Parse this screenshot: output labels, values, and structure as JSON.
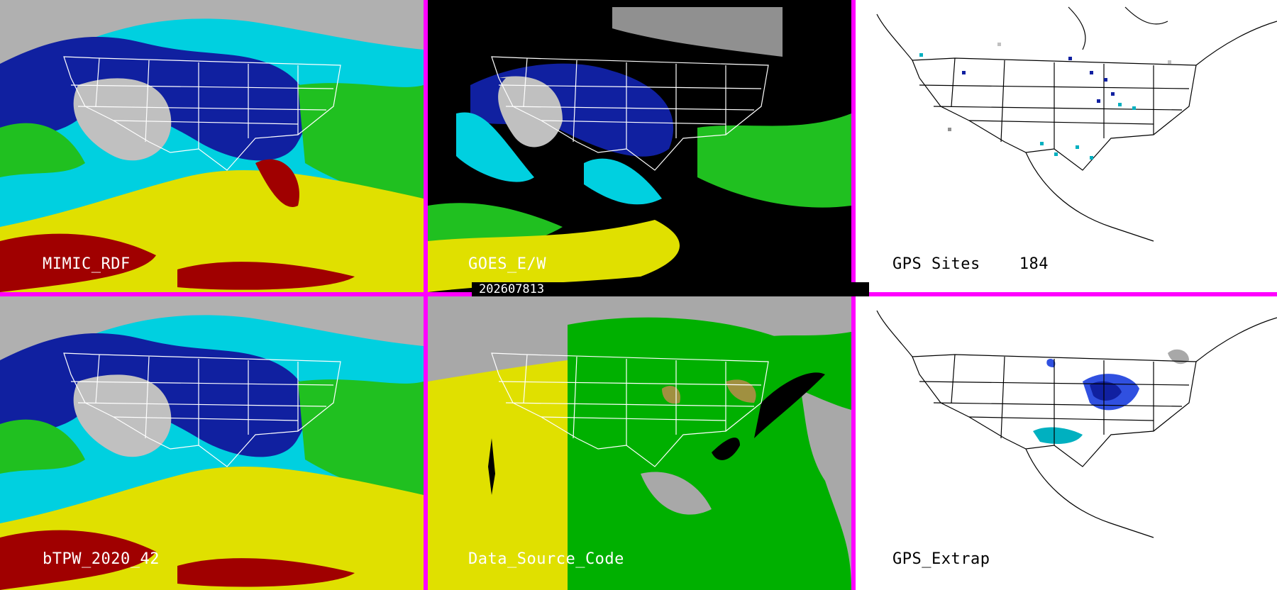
{
  "timestamp": "202607813",
  "panels": [
    {
      "id": "mimic",
      "label": "MIMIC_RDF"
    },
    {
      "id": "goes",
      "label": "GOES_E/W"
    },
    {
      "id": "gps",
      "label": "GPS Sites",
      "count": "184"
    },
    {
      "id": "btpw",
      "label": "bTPW_2020_42"
    },
    {
      "id": "dsc",
      "label": "Data_Source_Code"
    },
    {
      "id": "gpsx",
      "label": "GPS_Extrap"
    }
  ],
  "colors": {
    "divider": "#ff00ff",
    "tpw_scale": [
      "#a0a0a0",
      "#d8d8d8",
      "#1020a0",
      "#3050e0",
      "#00d0e0",
      "#20c020",
      "#a0e000",
      "#e0e000",
      "#c8a000",
      "#a00000"
    ],
    "source_codes": [
      "#a8a8a8",
      "#e0e000",
      "#00b000",
      "#a09040",
      "#000000"
    ]
  }
}
